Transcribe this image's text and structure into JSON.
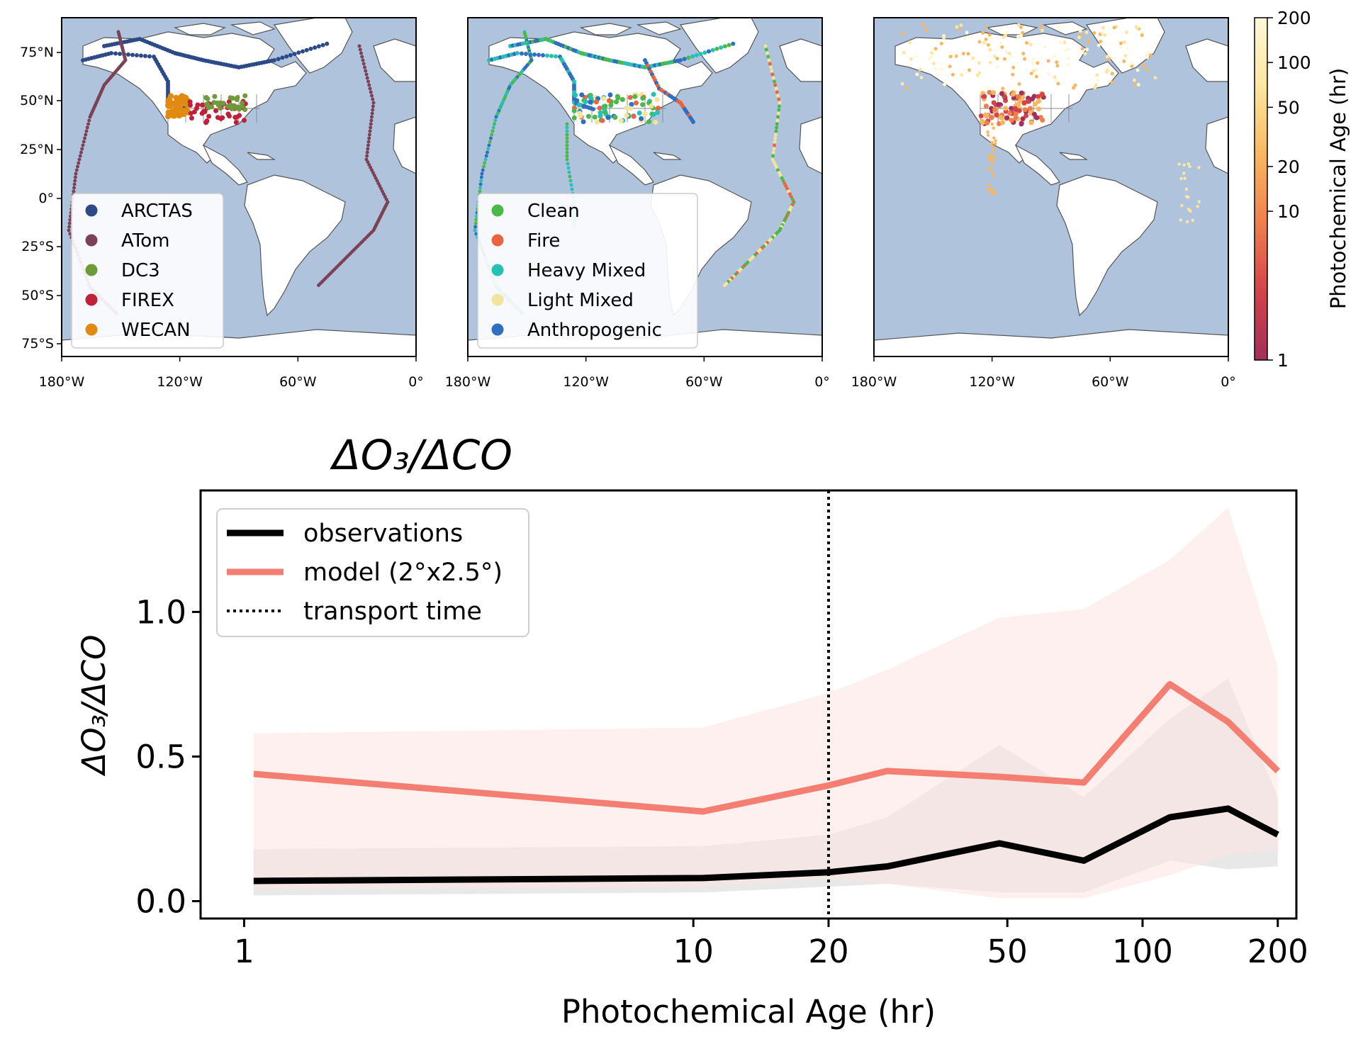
{
  "maps": {
    "lat_ticks": [
      "75°N",
      "50°N",
      "25°N",
      "0°",
      "25°S",
      "50°S",
      "75°S"
    ],
    "lon_ticks": [
      "180°W",
      "120°W",
      "60°W",
      "0°"
    ],
    "panels": [
      {
        "legend": [
          {
            "label": "ARCTAS",
            "color": "#2b4a87"
          },
          {
            "label": "ATom",
            "color": "#7b4256"
          },
          {
            "label": "DC3",
            "color": "#6e9a3a"
          },
          {
            "label": "FIREX",
            "color": "#c0203a"
          },
          {
            "label": "WECAN",
            "color": "#e08a12"
          }
        ]
      },
      {
        "legend": [
          {
            "label": "Clean",
            "color": "#4cb84a"
          },
          {
            "label": "Fire",
            "color": "#e8653f"
          },
          {
            "label": "Heavy Mixed",
            "color": "#28c0b4"
          },
          {
            "label": "Light Mixed",
            "color": "#f2e49a"
          },
          {
            "label": "Anthropogenic",
            "color": "#2f6fc0"
          }
        ]
      },
      {
        "legend": []
      }
    ],
    "colorbar": {
      "label": "Photochemical Age (hr)",
      "ticks": [
        "200",
        "100",
        "50",
        "20",
        "10",
        "1"
      ],
      "scale": "log",
      "range": [
        1,
        200
      ],
      "colors": [
        "#a1305a",
        "#d2434a",
        "#ee7f4e",
        "#f8b75e",
        "#fde6a0",
        "#fff8d8"
      ]
    },
    "ocean_color": "#afc3dc",
    "land_color": "#ffffff"
  },
  "chart_data": {
    "type": "line",
    "title": "ΔO₃/ΔCO",
    "xlabel": "Photochemical Age (hr)",
    "ylabel": "ΔO₃/ΔCO",
    "x_scale": "log",
    "xlim": [
      0.8,
      220
    ],
    "ylim": [
      -0.06,
      1.42
    ],
    "x_ticks": [
      "1",
      "10",
      "20",
      "50",
      "100",
      "200"
    ],
    "y_ticks": [
      "0.0",
      "0.5",
      "1.0"
    ],
    "x": [
      1.05,
      10.5,
      20,
      27,
      48,
      74,
      115,
      155,
      200
    ],
    "series": [
      {
        "name": "observations",
        "color": "#000000",
        "values": [
          0.07,
          0.08,
          0.1,
          0.12,
          0.2,
          0.14,
          0.29,
          0.32,
          0.23
        ],
        "band_low": [
          0.02,
          0.03,
          0.05,
          0.06,
          0.03,
          0.03,
          0.14,
          0.11,
          0.12
        ],
        "band_high": [
          0.18,
          0.19,
          0.23,
          0.29,
          0.54,
          0.36,
          0.63,
          0.77,
          0.36
        ],
        "band_color": "#808080"
      },
      {
        "name": "model (2°x2.5°)",
        "color": "#f47e72",
        "values": [
          0.44,
          0.31,
          0.4,
          0.45,
          0.43,
          0.41,
          0.75,
          0.62,
          0.45
        ],
        "band_low": [
          0.04,
          0.05,
          0.08,
          0.06,
          0.01,
          0.01,
          0.09,
          0.16,
          0.18
        ],
        "band_high": [
          0.58,
          0.6,
          0.72,
          0.8,
          0.98,
          1.01,
          1.18,
          1.36,
          0.81
        ],
        "band_color": "#fde4e0"
      }
    ],
    "vline": {
      "name": "transport time",
      "x": 20
    },
    "legend": [
      "observations",
      "model (2°x2.5°)",
      "transport time"
    ],
    "legend_position": "upper-left",
    "grid": false
  }
}
